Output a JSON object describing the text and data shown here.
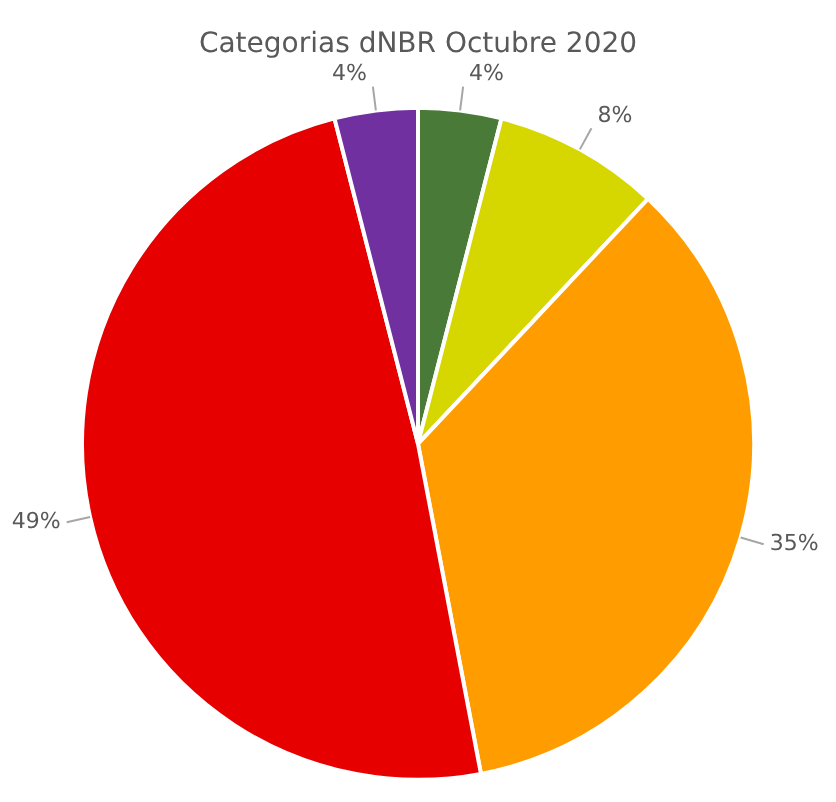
{
  "chart_data": {
    "type": "pie",
    "title": "Categorias dNBR Octubre 2020",
    "categories": [
      null,
      null,
      null,
      null,
      null
    ],
    "values": [
      4,
      8,
      35,
      49,
      4
    ],
    "value_labels": [
      "4%",
      "8%",
      "35%",
      "49%",
      "4%"
    ],
    "colors": [
      "#4a7a38",
      "#d6d600",
      "#ff9c00",
      "#e60000",
      "#7030a0"
    ],
    "legend": false
  }
}
